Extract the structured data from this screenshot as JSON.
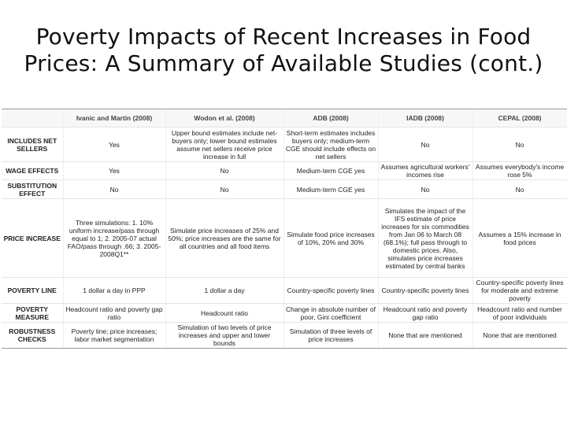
{
  "slide": {
    "title_line1": "Poverty Impacts of Recent Increases in Food",
    "title_line2": "Prices: A Summary of Available Studies (cont.)"
  },
  "table": {
    "columns": [
      "",
      "Ivanic and Martin (2008)",
      "Wodon et al. (2008)",
      "ADB (2008)",
      "IADB (2008)",
      "CEPAL (2008)"
    ],
    "rows": [
      {
        "label": "INCLUDES NET SELLERS",
        "cells": [
          "Yes",
          "Upper bound estimates include net-buyers only; lower bound estimates assume net sellers receive price increase in full",
          "Short-term estimates includes buyers only; medium-term CGE should include effects on net sellers",
          "No",
          "No"
        ]
      },
      {
        "label": "WAGE EFFECTS",
        "cells": [
          "Yes",
          "No",
          "Medium-term CGE yes",
          "Assumes agricultural workers' incomes rise",
          "Assumes everybody's income rose 5%"
        ]
      },
      {
        "label": "SUBSTITUTION EFFECT",
        "cells": [
          "No",
          "No",
          "Medium-term CGE yes",
          "No",
          "No"
        ]
      },
      {
        "label": "PRICE INCREASE",
        "cells": [
          "Three simulations: 1. 10% uniform increase/pass through equal to 1; 2. 2005-07 actual FAO/pass through .66; 3. 2005-2008Q1**",
          "Simulate price increases of 25% and 50%; price increases are the same for all countries and all food items",
          "Simulate food price increases of 10%, 20% and 30%",
          "Simulates the impact of the IFS estimate of price increases for six commodities from Jan 06 to March 08 (68.1%); full pass through to domestic prices. Also, simulates price increases estimated by central banks",
          "Assumes a 15% increase in food prices"
        ]
      },
      {
        "label": "POVERTY LINE",
        "cells": [
          "1 dollar a day in PPP",
          "1 dollar a day",
          "Country-specific poverty lines",
          "Country-specific poverty lines",
          "Country-specific poverty lines for moderate and extreme poverty"
        ]
      },
      {
        "label": "POVERTY MEASURE",
        "cells": [
          "Headcount ratio and poverty gap ratio",
          "Headcount ratio",
          "Change in absolute number of poor, Gini coefficient",
          "Headcount ratio and poverty gap ratio",
          "Headcount ratio and number of poor individuals"
        ]
      },
      {
        "label": "ROBUSTNESS CHECKS",
        "cells": [
          "Poverty line; price increases; labor market segmentation",
          "Simulation of two levels of price increases and upper and lower bounds",
          "Simulation of three levels of price increases",
          "None that are mentioned",
          "None that are mentioned"
        ]
      }
    ]
  }
}
